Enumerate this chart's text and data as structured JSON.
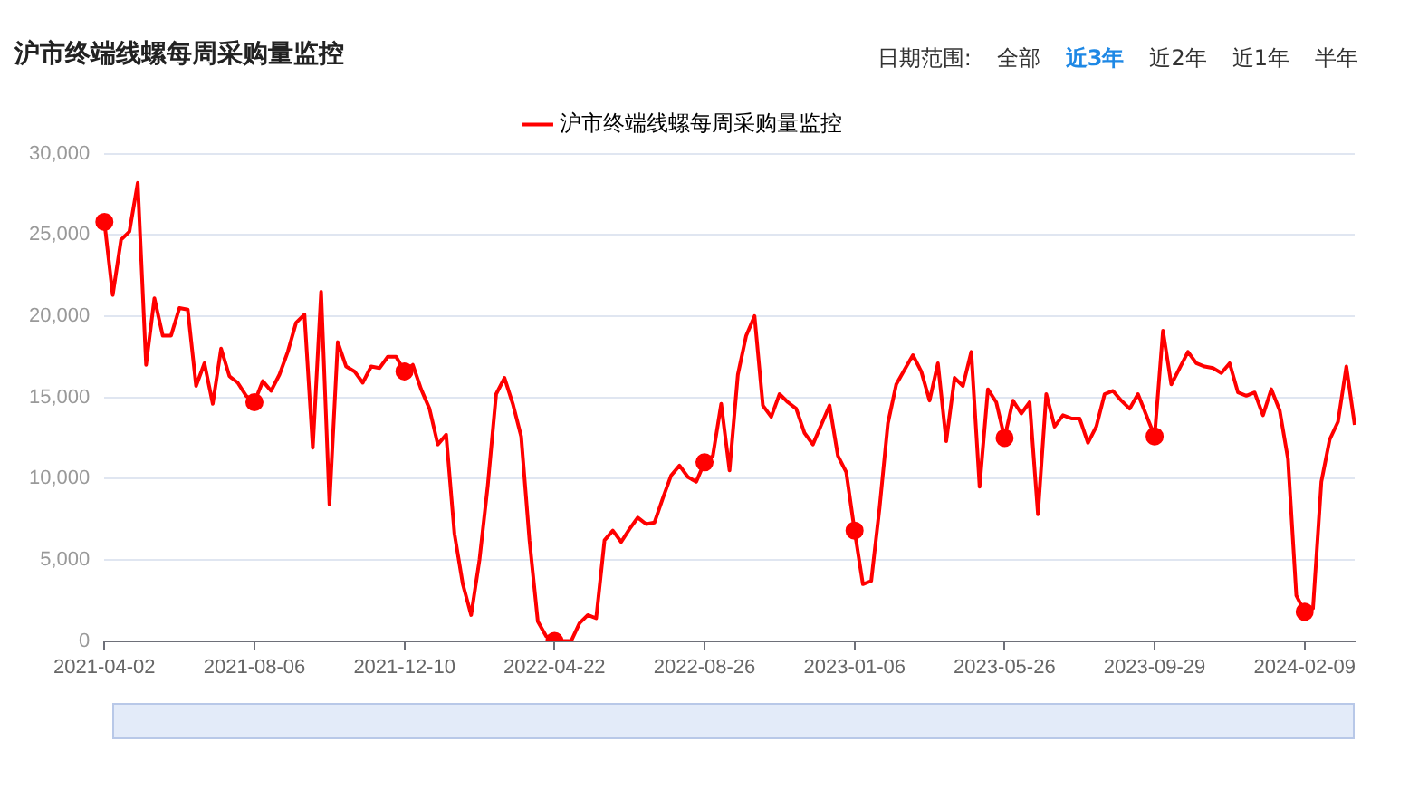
{
  "chart_data": {
    "type": "line",
    "title": "沪市终端线螺每周采购量监控",
    "annotations": [
      "日期范围:",
      "全部",
      "近3年",
      "近2年",
      "近1年",
      "半年"
    ],
    "categories": [
      "2021-04-02",
      null,
      null,
      null,
      null,
      null,
      null,
      null,
      null,
      null,
      null,
      null,
      null,
      null,
      null,
      null,
      null,
      null,
      "2021-08-06",
      null,
      null,
      null,
      null,
      null,
      null,
      null,
      null,
      null,
      null,
      null,
      null,
      null,
      null,
      null,
      null,
      null,
      "2021-12-10",
      null,
      null,
      null,
      null,
      null,
      null,
      null,
      null,
      null,
      null,
      null,
      null,
      null,
      null,
      null,
      null,
      null,
      "2022-04-22",
      null,
      null,
      null,
      null,
      null,
      null,
      null,
      null,
      null,
      null,
      null,
      null,
      null,
      null,
      null,
      null,
      null,
      "2022-08-26",
      null,
      null,
      null,
      null,
      null,
      null,
      null,
      null,
      null,
      null,
      null,
      null,
      null,
      null,
      null,
      null,
      null,
      "2023-01-06",
      null,
      null,
      null,
      null,
      null,
      null,
      null,
      null,
      null,
      null,
      null,
      null,
      null,
      null,
      null,
      null,
      null,
      "2023-05-26",
      null,
      null,
      null,
      null,
      null,
      null,
      null,
      null,
      null,
      null,
      null,
      null,
      null,
      null,
      null,
      null,
      null,
      "2023-09-29",
      null,
      null,
      null,
      null,
      null,
      null,
      null,
      null,
      null,
      null,
      null,
      null,
      null,
      null,
      null,
      null,
      null,
      "2024-02-09",
      null,
      null,
      null,
      null,
      null,
      null
    ],
    "series": [
      {
        "name": "沪市终端线螺每周采购量监控",
        "color": "#ff0000",
        "values": [
          25800,
          21300,
          24700,
          25200,
          28200,
          17000,
          21100,
          18800,
          18800,
          20500,
          20400,
          15700,
          17100,
          14600,
          18000,
          16300,
          15900,
          15100,
          14700,
          16000,
          15400,
          16400,
          17800,
          19600,
          20100,
          11900,
          21500,
          8400,
          18400,
          16900,
          16600,
          15900,
          16900,
          16800,
          17500,
          17500,
          16600,
          17000,
          15500,
          14300,
          12100,
          12700,
          6600,
          3500,
          1600,
          5000,
          9600,
          15200,
          16200,
          14600,
          12600,
          6200,
          1200,
          300,
          0,
          0,
          0,
          1100,
          1600,
          1400,
          6200,
          6800,
          6100,
          6900,
          7600,
          7200,
          7300,
          8800,
          10200,
          10800,
          10100,
          9800,
          11000,
          11400,
          14600,
          10500,
          16400,
          18800,
          20000,
          14500,
          13800,
          15200,
          14700,
          14300,
          12800,
          12100,
          13300,
          14500,
          11400,
          10400,
          6800,
          3500,
          3700,
          8200,
          13400,
          15800,
          16700,
          17600,
          16600,
          14800,
          17100,
          12300,
          16200,
          15700,
          17800,
          9500,
          15500,
          14700,
          12500,
          14800,
          14000,
          14700,
          7800,
          15200,
          13200,
          13900,
          13700,
          13700,
          12200,
          13200,
          15200,
          15400,
          14800,
          14300,
          15200,
          13900,
          12600,
          19100,
          15800,
          16800,
          17800,
          17100,
          16900,
          16800,
          16500,
          17100,
          15300,
          15100,
          15300,
          13900,
          15500,
          14200,
          11200,
          2800,
          1800,
          2000,
          9800,
          12400,
          13500,
          16900,
          13300
        ]
      }
    ],
    "ylim": [
      0,
      30000
    ],
    "yticks": [
      {
        "value": 0,
        "label": "0"
      },
      {
        "value": 5000,
        "label": "5,000"
      },
      {
        "value": 10000,
        "label": "10,000"
      },
      {
        "value": 15000,
        "label": "15,000"
      },
      {
        "value": 20000,
        "label": "20,000"
      },
      {
        "value": 25000,
        "label": "25,000"
      },
      {
        "value": 30000,
        "label": "30,000"
      }
    ],
    "grid": "y",
    "legend": "top",
    "line_style": "solid"
  }
}
